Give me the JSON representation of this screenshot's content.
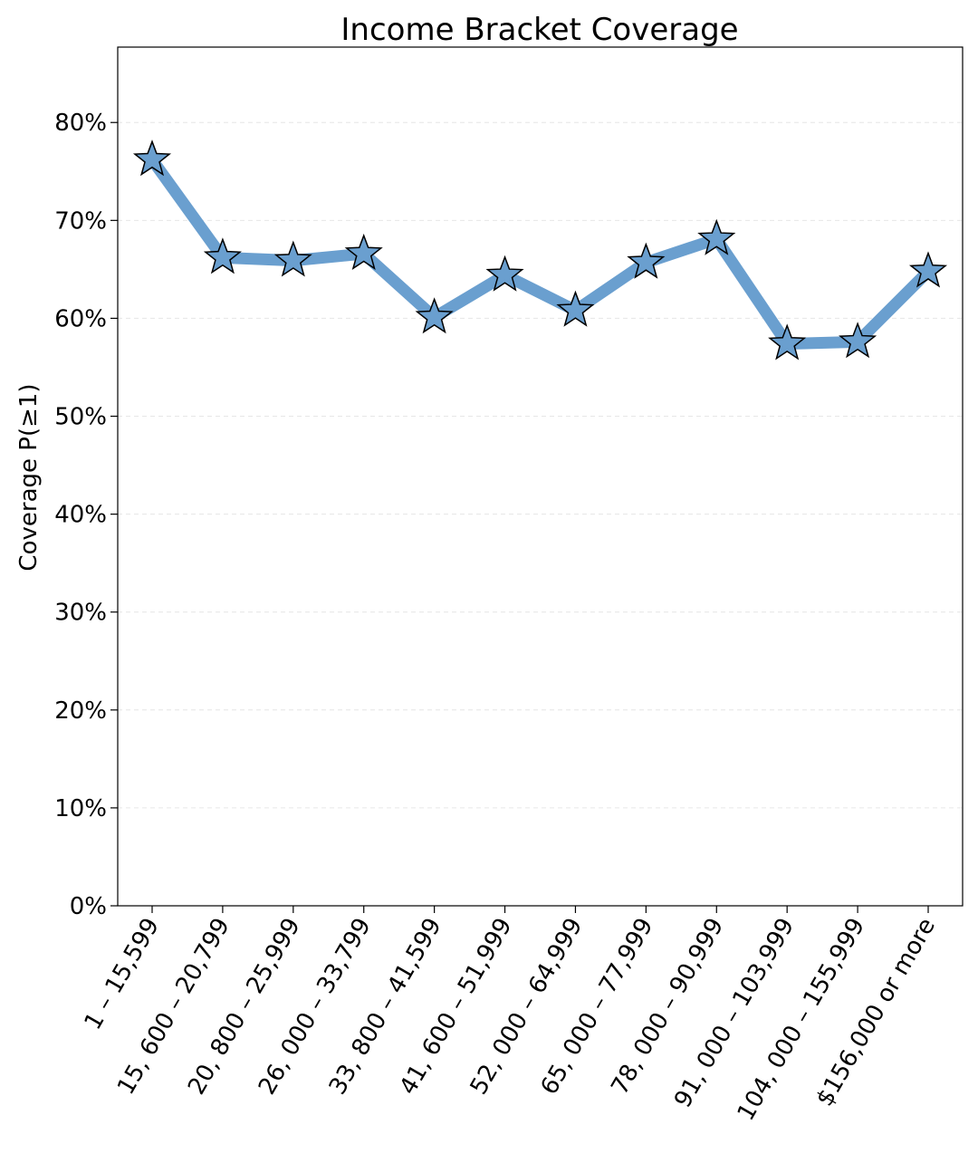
{
  "chart_data": {
    "type": "line",
    "title": "Income Bracket Coverage",
    "xlabel": "",
    "ylabel": "Coverage P(≥1)",
    "categories": [
      "1 – 15,599",
      "15, 600 – 20,799",
      "20, 800 – 25,999",
      "26, 000 – 33,799",
      "33, 800 – 41,599",
      "41, 600 – 51,999",
      "52, 000 – 64,999",
      "65, 000 – 77,999",
      "78, 000 – 90,999",
      "91, 000 – 103,999",
      "104, 000 – 155,999",
      "$156,000 or more"
    ],
    "series": [
      {
        "values": [
          0.762,
          0.662,
          0.659,
          0.666,
          0.601,
          0.644,
          0.608,
          0.657,
          0.681,
          0.574,
          0.576,
          0.648
        ],
        "color": "#6a9fcf",
        "marker": "star"
      }
    ],
    "yticks": [
      0,
      0.1,
      0.2,
      0.3,
      0.4,
      0.5,
      0.6,
      0.7,
      0.8
    ],
    "ytick_labels": [
      "0%",
      "10%",
      "20%",
      "30%",
      "40%",
      "50%",
      "60%",
      "70%",
      "80%"
    ],
    "ylim": [
      0,
      0.877
    ],
    "grid": "horizontal-dashed",
    "legend": "none"
  }
}
